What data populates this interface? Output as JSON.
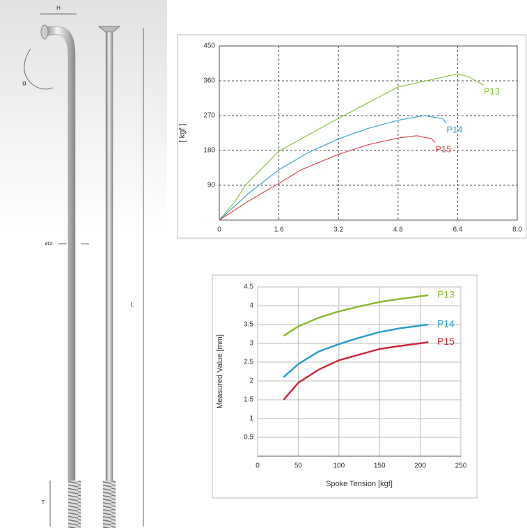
{
  "diagram": {
    "labels": {
      "width": "H",
      "angle": "α",
      "diameter": "øDI",
      "length": "L",
      "thread": "T"
    }
  },
  "chart_data": [
    {
      "type": "line",
      "ylabel": "[ kgf ]",
      "xlim": [
        0,
        8
      ],
      "xticks": [
        0,
        1.6,
        3.2,
        4.8,
        6.4,
        {
          "value": 8,
          "label": "8.0"
        }
      ],
      "ylim": [
        0,
        450
      ],
      "yticks": [
        90,
        180,
        270,
        360,
        450
      ],
      "grid": "dashed",
      "series": [
        {
          "name": "P13",
          "color": "#8cc43c",
          "x": [
            0,
            0.4,
            0.7,
            1.6,
            3.2,
            4.8,
            6.4,
            6.7,
            7.1
          ],
          "values": [
            0,
            45,
            90,
            178,
            263,
            344,
            378,
            370,
            349
          ]
        },
        {
          "name": "P14",
          "color": "#3ba3d6",
          "x": [
            0,
            0.8,
            1.6,
            2.4,
            3.2,
            4,
            4.8,
            5.5,
            6,
            6.1
          ],
          "values": [
            0,
            70,
            130,
            175,
            210,
            237,
            258,
            270,
            262,
            250
          ]
        },
        {
          "name": "P15",
          "color": "#de4a4f",
          "x": [
            0,
            0.8,
            1.6,
            2.2,
            3.2,
            4,
            4.8,
            5.3,
            5.7,
            5.8
          ],
          "values": [
            0,
            50,
            95,
            130,
            170,
            195,
            212,
            218,
            210,
            200
          ]
        }
      ]
    },
    {
      "type": "line",
      "xlabel": "Spoke Tension [kgf]",
      "ylabel": "Measured Value [mm]",
      "xlim": [
        0,
        250
      ],
      "xticks": [
        0,
        50,
        100,
        150,
        200,
        250
      ],
      "ylim": [
        0,
        4.5
      ],
      "yticks": [
        0.5,
        1,
        1.5,
        2,
        2.5,
        3,
        3.5,
        4,
        4.5
      ],
      "grid": "solid",
      "series": [
        {
          "name": "P13",
          "color": "#8cb832",
          "x": [
            32,
            50,
            75,
            100,
            125,
            150,
            175,
            210
          ],
          "values": [
            3.2,
            3.45,
            3.68,
            3.85,
            3.98,
            4.1,
            4.18,
            4.28
          ]
        },
        {
          "name": "P14",
          "color": "#2a9ccf",
          "x": [
            32,
            50,
            75,
            100,
            125,
            150,
            175,
            210
          ],
          "values": [
            2.1,
            2.45,
            2.78,
            2.98,
            3.15,
            3.3,
            3.4,
            3.5
          ]
        },
        {
          "name": "P15",
          "color": "#c8283a",
          "x": [
            32,
            50,
            75,
            100,
            125,
            150,
            175,
            210
          ],
          "values": [
            1.5,
            1.95,
            2.3,
            2.55,
            2.7,
            2.85,
            2.93,
            3.03
          ]
        }
      ]
    }
  ]
}
